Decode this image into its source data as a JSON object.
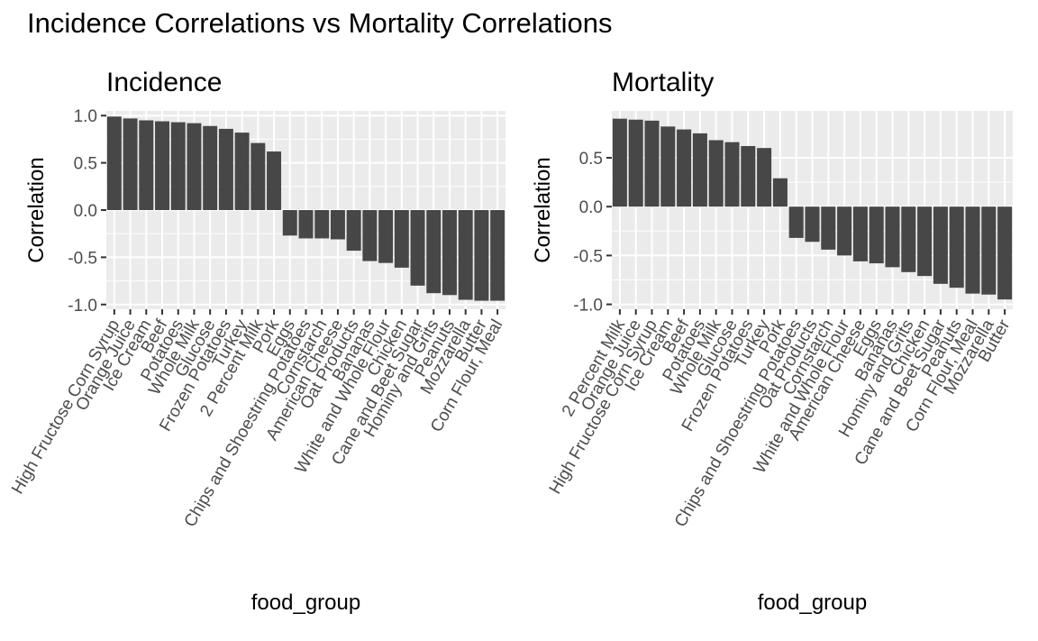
{
  "page": {
    "title": "Incidence Correlations vs Mortality Correlations"
  },
  "chart_data": [
    {
      "type": "bar",
      "title": "Incidence",
      "xlabel": "food_group",
      "ylabel": "Correlation",
      "ylim": [
        -1.05,
        1.05
      ],
      "yticks": [
        -1.0,
        -0.5,
        0.0,
        0.5,
        1.0
      ],
      "ytick_labels": [
        "-1.0",
        "-0.5",
        "0.0",
        "0.5",
        "1.0"
      ],
      "grid": true,
      "categories": [
        "High Fructose Corn Syrup",
        "Orange Juice",
        "Ice Cream",
        "Beef",
        "Potatoes",
        "Whole Milk",
        "Glucose",
        "Frozen Potatoes",
        "Turkey",
        "2 Percent Milk",
        "Pork",
        "Eggs",
        "Chips and Shoestring Potatoes",
        "Cornstarch",
        "American Cheese",
        "Oat Products",
        "Bananas",
        "White and Whole Flour",
        "Chicken",
        "Cane and Beet Sugar",
        "Hominy and Grits",
        "Peanuts",
        "Mozzarella",
        "Butter",
        "Corn Flour, Meal"
      ],
      "values": [
        0.99,
        0.97,
        0.95,
        0.94,
        0.93,
        0.92,
        0.89,
        0.86,
        0.82,
        0.71,
        0.62,
        -0.27,
        -0.3,
        -0.3,
        -0.31,
        -0.43,
        -0.54,
        -0.56,
        -0.61,
        -0.8,
        -0.88,
        -0.9,
        -0.95,
        -0.96,
        -0.96
      ]
    },
    {
      "type": "bar",
      "title": "Mortality",
      "xlabel": "food_group",
      "ylabel": "Correlation",
      "ylim": [
        -1.05,
        0.98
      ],
      "yticks": [
        -1.0,
        -0.5,
        0.0,
        0.5
      ],
      "ytick_labels": [
        "-1.0",
        "-0.5",
        "0.0",
        "0.5"
      ],
      "grid": true,
      "categories": [
        "2 Percent Milk",
        "Orange Juice",
        "High Fructose Corn Syrup",
        "Ice Cream",
        "Beef",
        "Potatoes",
        "Whole Milk",
        "Glucose",
        "Frozen Potatoes",
        "Turkey",
        "Pork",
        "Chips and Shoestring Potatoes",
        "Oat Products",
        "Cornstarch",
        "White and Whole Flour",
        "American Cheese",
        "Eggs",
        "Bananas",
        "Hominy and Grits",
        "Chicken",
        "Cane and Beet Sugar",
        "Peanuts",
        "Corn Flour, Meal",
        "Mozzarella",
        "Butter"
      ],
      "values": [
        0.9,
        0.89,
        0.88,
        0.82,
        0.79,
        0.75,
        0.68,
        0.66,
        0.62,
        0.6,
        0.29,
        -0.32,
        -0.36,
        -0.44,
        -0.5,
        -0.56,
        -0.58,
        -0.62,
        -0.67,
        -0.71,
        -0.79,
        -0.83,
        -0.89,
        -0.9,
        -0.95
      ]
    }
  ]
}
